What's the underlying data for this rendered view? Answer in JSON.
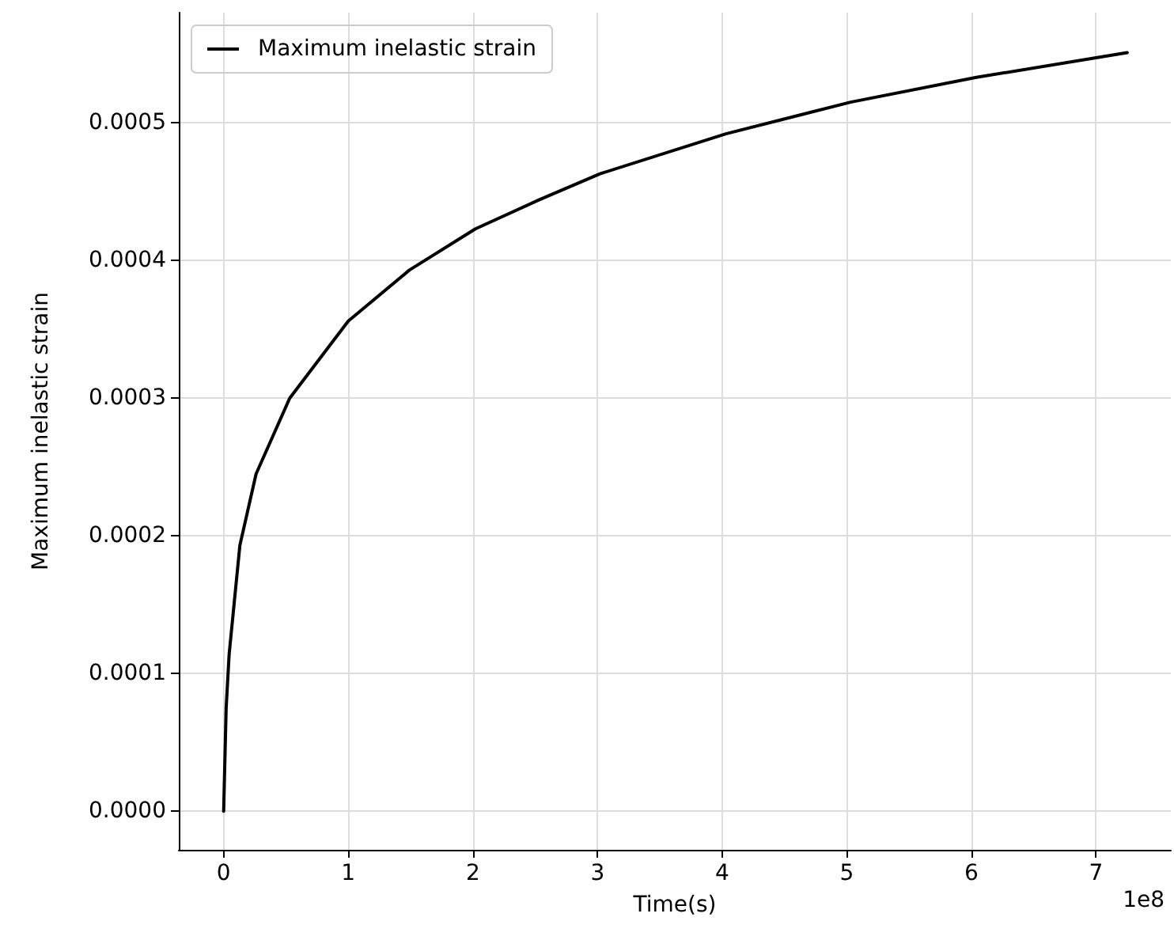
{
  "chart_data": {
    "type": "line",
    "xlabel": "Time(s)",
    "ylabel": "Maximum inelastic strain",
    "annotations": [
      "1e8"
    ],
    "x": [
      0,
      0.02,
      0.044,
      0.13,
      0.26,
      0.53,
      1.0,
      1.49,
      2.02,
      2.53,
      3.02,
      4.03,
      5.03,
      6.04,
      7.25
    ],
    "series": [
      {
        "name": "Maximum inelastic strain",
        "color": "#000000",
        "values": [
          0,
          7.5e-05,
          0.000114,
          0.000193,
          0.000245,
          0.0003,
          0.000356,
          0.000393,
          0.000423,
          0.000444,
          0.000463,
          0.000492,
          0.000515,
          0.000533,
          0.000551
        ]
      }
    ],
    "xlim": [
      -0.36,
      7.6
    ],
    "ylim": [
      -2.8e-05,
      0.00058
    ],
    "xticks": [
      0,
      1,
      2,
      3,
      4,
      5,
      6,
      7
    ],
    "yticks": [
      {
        "value": 0,
        "label": "0.0000"
      },
      {
        "value": 0.0001,
        "label": "0.0001"
      },
      {
        "value": 0.0002,
        "label": "0.0002"
      },
      {
        "value": 0.0003,
        "label": "0.0003"
      },
      {
        "value": 0.0004,
        "label": "0.0004"
      },
      {
        "value": 0.0005,
        "label": "0.0005"
      }
    ],
    "grid": true,
    "legend": "top left",
    "marker": "none",
    "line_style": "solid"
  }
}
